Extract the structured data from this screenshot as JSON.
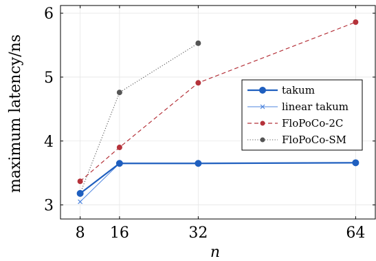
{
  "chart_data": {
    "type": "line",
    "title": "",
    "xlabel": "n",
    "ylabel": "maximum latency/ns",
    "xlim": [
      4,
      68
    ],
    "ylim": [
      2.78,
      6.12
    ],
    "xticks": [
      8,
      16,
      32,
      64
    ],
    "xtick_labels": [
      "8",
      "16",
      "32",
      "64"
    ],
    "yticks": [
      3,
      4,
      5,
      6
    ],
    "ytick_labels": [
      "3",
      "4",
      "5",
      "6"
    ],
    "grid": true,
    "legend_position": "right",
    "series": [
      {
        "name": "takum",
        "x": [
          8,
          16,
          32,
          64
        ],
        "y": [
          3.18,
          3.65,
          3.65,
          3.66
        ],
        "color": "#1f5fbf",
        "style": "solid-thick",
        "marker": "circle"
      },
      {
        "name": "linear takum",
        "x": [
          8,
          16,
          32,
          64
        ],
        "y": [
          3.05,
          3.65,
          3.65,
          3.66
        ],
        "color": "#4f86df",
        "style": "solid-thin",
        "marker": "x"
      },
      {
        "name": "FloPoCo-2C",
        "x": [
          8,
          16,
          32,
          64
        ],
        "y": [
          3.37,
          3.9,
          4.91,
          5.86
        ],
        "color": "#b5323a",
        "style": "dashed",
        "marker": "circle"
      },
      {
        "name": "FloPoCo-SM",
        "x": [
          8,
          16,
          32
        ],
        "y": [
          3.18,
          4.76,
          5.53
        ],
        "color": "#555555",
        "style": "dotted",
        "marker": "circle"
      }
    ]
  }
}
